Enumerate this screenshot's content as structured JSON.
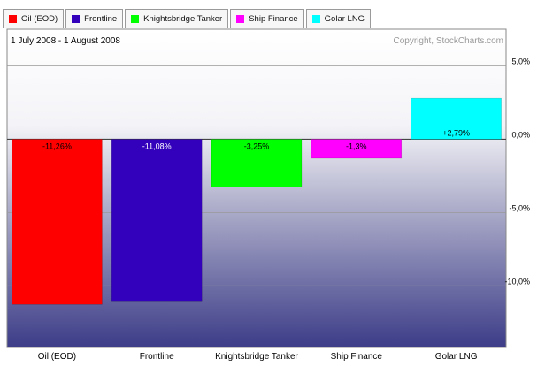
{
  "legend": [
    {
      "label": "Oil (EOD)",
      "color": "#ff0000"
    },
    {
      "label": "Frontline",
      "color": "#3300bb"
    },
    {
      "label": "Knightsbridge Tanker",
      "color": "#00ff00"
    },
    {
      "label": "Ship Finance",
      "color": "#ff00ff"
    },
    {
      "label": "Golar LNG",
      "color": "#00ffff"
    }
  ],
  "date_range": "1 July 2008 - 1 August 2008",
  "copyright": "Copyright, StockCharts.com",
  "chart_data": {
    "type": "bar",
    "categories": [
      "Oil (EOD)",
      "Frontline",
      "Knightsbridge Tanker",
      "Ship Finance",
      "Golar LNG"
    ],
    "values": [
      -11.26,
      -11.08,
      -3.25,
      -1.3,
      2.79
    ],
    "value_labels": [
      "-11,26%",
      "-11,08%",
      "-3,25%",
      "-1,3%",
      "+2,79%"
    ],
    "colors": [
      "#ff0000",
      "#3300bb",
      "#00ff00",
      "#ff00ff",
      "#00ffff"
    ],
    "ylim": [
      -14.2,
      7.5
    ],
    "yticks": [
      5,
      0,
      -5,
      -10
    ],
    "ytick_labels": [
      "5,0%",
      "0,0%",
      "-5,0%",
      "-10,0%"
    ],
    "grid": true,
    "legend_position": "top"
  }
}
